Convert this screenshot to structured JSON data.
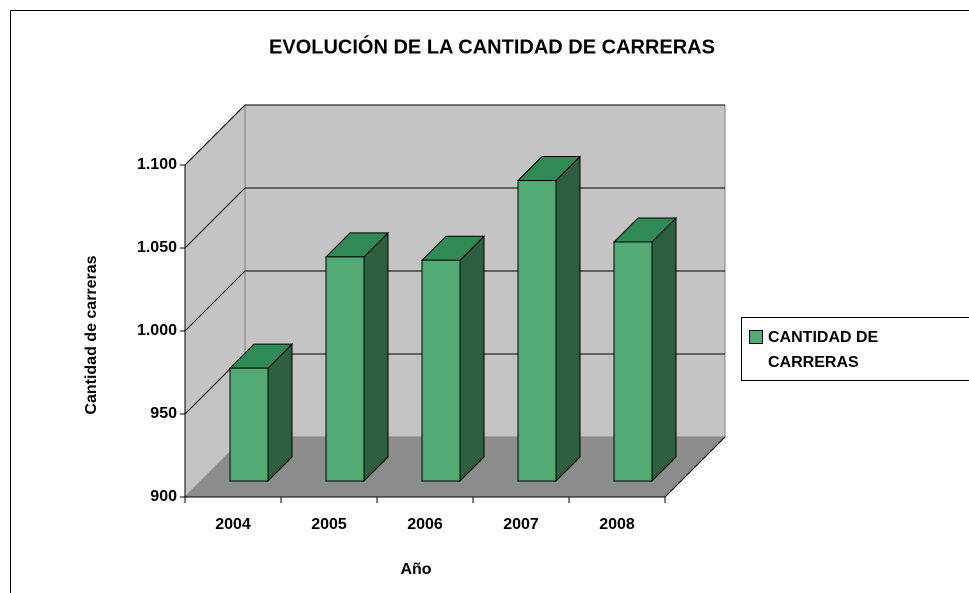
{
  "chart_data": {
    "type": "bar3d",
    "title": "EVOLUCIÓN DE LA CANTIDAD DE CARRERAS",
    "x_label": "Año",
    "y_label": "Cantidad de carreras",
    "categories": [
      "2004",
      "2005",
      "2006",
      "2007",
      "2008"
    ],
    "series": [
      {
        "name": "CANTIDAD DE CARRERAS",
        "color": "#52ab72",
        "values": [
          968,
          1035,
          1033,
          1081,
          1044
        ]
      }
    ],
    "ylim": [
      900,
      1100
    ],
    "yticks": [
      900,
      950,
      {
        "value": 1000,
        "label": "1.000"
      },
      {
        "value": 1050,
        "label": "1.050"
      },
      {
        "value": 1100,
        "label": "1.100"
      }
    ],
    "grid": true,
    "legend": "right"
  }
}
